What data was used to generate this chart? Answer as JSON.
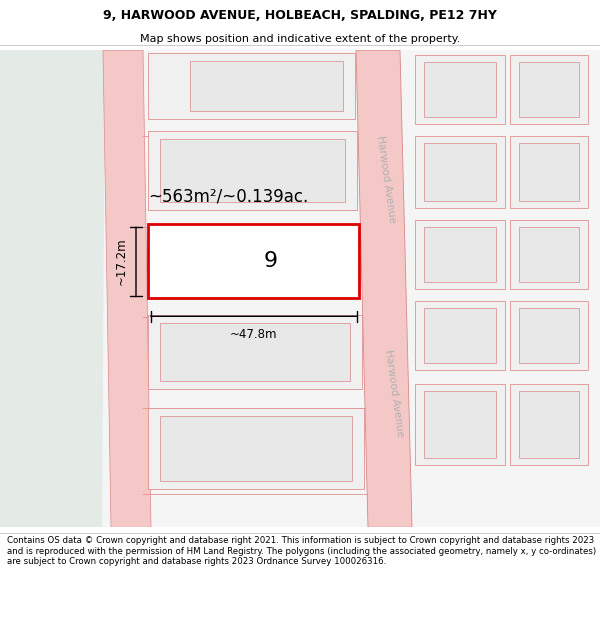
{
  "title_line1": "9, HARWOOD AVENUE, HOLBEACH, SPALDING, PE12 7HY",
  "title_line2": "Map shows position and indicative extent of the property.",
  "footer_text": "Contains OS data © Crown copyright and database right 2021. This information is subject to Crown copyright and database rights 2023 and is reproduced with the permission of HM Land Registry. The polygons (including the associated geometry, namely x, y co-ordinates) are subject to Crown copyright and database rights 2023 Ordnance Survey 100026316.",
  "map_bg": "#f5f5f5",
  "map_left_bg": "#e6ece8",
  "road_color": "#f5c8c8",
  "road_border_color": "#d88888",
  "building_fill": "#e8e8e8",
  "building_border": "#d88888",
  "plot_border": "#e09090",
  "highlight_color": "#dd0000",
  "highlight_fill": "#ffffff",
  "dimension_color": "#222222",
  "street_label_color": "#aaaaaa",
  "area_text": "~563m²/~0.139ac.",
  "number_label": "9",
  "width_label": "~47.8m",
  "height_label": "~17.2m",
  "harwood_avenue_label": "Harwood Avenue",
  "title_fontsize": 9,
  "subtitle_fontsize": 8,
  "footer_fontsize": 6.2
}
